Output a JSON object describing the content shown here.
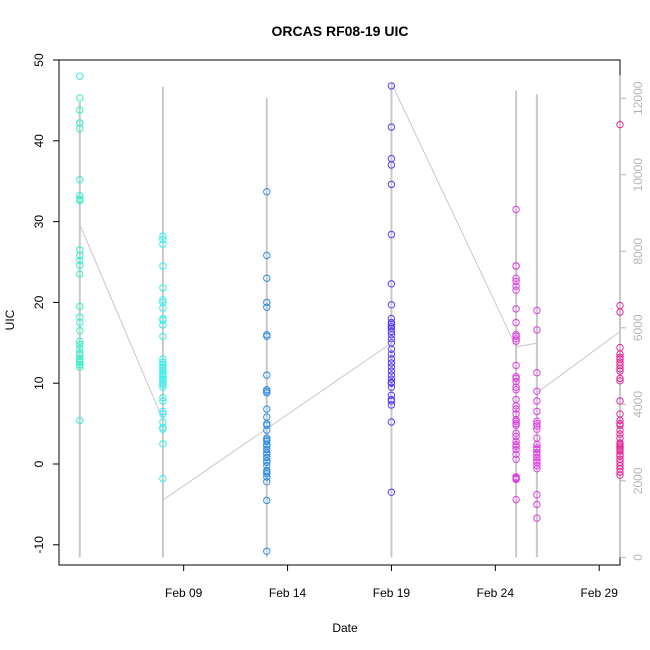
{
  "chart_data": {
    "type": "scatter",
    "title": "ORCAS RF08-19 UIC",
    "xlabel": "Date",
    "ylabel": "UIC",
    "x_axis": {
      "range": [
        "2016-02-03",
        "2016-03-01"
      ],
      "ticks": [
        "2016-02-09",
        "2016-02-14",
        "2016-02-19",
        "2016-02-24",
        "2016-02-29"
      ],
      "tick_labels": [
        "Feb 09",
        "Feb 14",
        "Feb 19",
        "Feb 24",
        "Feb 29"
      ]
    },
    "y_axis_left": {
      "range": [
        -12.5,
        50
      ],
      "ticks": [
        -10,
        0,
        10,
        20,
        30,
        40,
        50
      ],
      "tick_labels": [
        "-10",
        "0",
        "10",
        "20",
        "30",
        "40",
        "50"
      ]
    },
    "y_axis_right": {
      "range": [
        -200,
        13000
      ],
      "ticks": [
        0,
        2000,
        4000,
        6000,
        8000,
        10000,
        12000
      ],
      "tick_labels": [
        "0",
        "2000",
        "4000",
        "6000",
        "8000",
        "10000",
        "12000"
      ],
      "color": "#b4b4b4"
    },
    "grid": false,
    "legend": "none",
    "series": [
      {
        "color": "#33f0c8",
        "x": [
          "2016-02-04",
          "2016-02-04",
          "2016-02-04",
          "2016-02-04",
          "2016-02-04",
          "2016-02-04",
          "2016-02-04",
          "2016-02-04",
          "2016-02-04",
          "2016-02-04",
          "2016-02-04",
          "2016-02-04",
          "2016-02-04",
          "2016-02-04",
          "2016-02-04",
          "2016-02-04",
          "2016-02-04",
          "2016-02-04",
          "2016-02-04",
          "2016-02-04",
          "2016-02-04",
          "2016-02-04",
          "2016-02-04",
          "2016-02-04",
          "2016-02-04",
          "2016-02-04",
          "2016-02-04",
          "2016-02-04",
          "2016-02-04",
          "2016-02-04"
        ],
        "y": [
          48.0,
          45.3,
          43.8,
          42.2,
          42.2,
          41.5,
          35.2,
          33.2,
          32.8,
          32.6,
          26.5,
          25.8,
          25.2,
          24.6,
          23.5,
          19.5,
          18.2,
          17.5,
          16.5,
          15.2,
          14.8,
          14.3,
          13.8,
          13.5,
          13.0,
          12.8,
          12.6,
          12.3,
          12.0,
          5.4
        ]
      },
      {
        "color": "#33f0f0",
        "x": [
          "2016-02-08",
          "2016-02-08",
          "2016-02-08",
          "2016-02-08",
          "2016-02-08",
          "2016-02-08",
          "2016-02-08",
          "2016-02-08",
          "2016-02-08",
          "2016-02-08",
          "2016-02-08",
          "2016-02-08",
          "2016-02-08",
          "2016-02-08",
          "2016-02-08",
          "2016-02-08",
          "2016-02-08",
          "2016-02-08",
          "2016-02-08",
          "2016-02-08",
          "2016-02-08",
          "2016-02-08",
          "2016-02-08",
          "2016-02-08",
          "2016-02-08",
          "2016-02-08",
          "2016-02-08",
          "2016-02-08",
          "2016-02-08",
          "2016-02-08",
          "2016-02-08",
          "2016-02-08",
          "2016-02-08",
          "2016-02-08",
          "2016-02-08"
        ],
        "y": [
          28.2,
          27.8,
          27.2,
          24.5,
          21.8,
          20.3,
          20.0,
          19.3,
          18.0,
          17.8,
          17.2,
          15.8,
          13.0,
          12.6,
          12.3,
          12.0,
          11.8,
          11.5,
          11.2,
          11.0,
          10.8,
          10.5,
          10.3,
          10.0,
          9.8,
          9.5,
          8.2,
          7.8,
          6.5,
          6.2,
          5.2,
          4.5,
          4.3,
          2.5,
          -1.8
        ]
      },
      {
        "color": "#2e8ee8",
        "x": [
          "2016-02-13",
          "2016-02-13",
          "2016-02-13",
          "2016-02-13",
          "2016-02-13",
          "2016-02-13",
          "2016-02-13",
          "2016-02-13",
          "2016-02-13",
          "2016-02-13",
          "2016-02-13",
          "2016-02-13",
          "2016-02-13",
          "2016-02-13",
          "2016-02-13",
          "2016-02-13",
          "2016-02-13",
          "2016-02-13",
          "2016-02-13",
          "2016-02-13",
          "2016-02-13",
          "2016-02-13",
          "2016-02-13",
          "2016-02-13",
          "2016-02-13",
          "2016-02-13",
          "2016-02-13",
          "2016-02-13",
          "2016-02-13",
          "2016-02-13",
          "2016-02-13",
          "2016-02-13",
          "2016-02-13",
          "2016-02-13",
          "2016-02-13"
        ],
        "y": [
          33.7,
          25.8,
          23.0,
          20.0,
          19.4,
          16.0,
          15.8,
          11.0,
          9.2,
          9.0,
          8.8,
          6.8,
          5.8,
          5.0,
          4.8,
          4.2,
          3.2,
          3.0,
          2.8,
          2.4,
          2.2,
          1.8,
          1.4,
          1.2,
          0.8,
          0.4,
          0.2,
          -0.2,
          -0.8,
          -1.0,
          -1.2,
          -1.6,
          -2.2,
          -4.5,
          -10.8
        ]
      },
      {
        "color": "#5a3ef0",
        "x": [
          "2016-02-19",
          "2016-02-19",
          "2016-02-19",
          "2016-02-19",
          "2016-02-19",
          "2016-02-19",
          "2016-02-19",
          "2016-02-19",
          "2016-02-19",
          "2016-02-19",
          "2016-02-19",
          "2016-02-19",
          "2016-02-19",
          "2016-02-19",
          "2016-02-19",
          "2016-02-19",
          "2016-02-19",
          "2016-02-19",
          "2016-02-19",
          "2016-02-19",
          "2016-02-19",
          "2016-02-19",
          "2016-02-19",
          "2016-02-19",
          "2016-02-19",
          "2016-02-19",
          "2016-02-19",
          "2016-02-19",
          "2016-02-19",
          "2016-02-19",
          "2016-02-19",
          "2016-02-19",
          "2016-02-19",
          "2016-02-19"
        ],
        "y": [
          46.8,
          41.7,
          37.8,
          37.0,
          34.6,
          28.4,
          22.3,
          19.7,
          18.0,
          17.5,
          17.3,
          17.0,
          16.8,
          16.4,
          16.0,
          15.5,
          15.0,
          14.2,
          13.6,
          13.0,
          12.5,
          12.0,
          11.5,
          11.0,
          10.5,
          10.1,
          10.0,
          9.5,
          8.5,
          8.0,
          7.8,
          7.3,
          5.2,
          -3.5
        ]
      },
      {
        "color": "#e03ee6",
        "x": [
          "2016-02-25",
          "2016-02-25",
          "2016-02-25",
          "2016-02-25",
          "2016-02-25",
          "2016-02-25",
          "2016-02-25",
          "2016-02-25",
          "2016-02-25",
          "2016-02-25",
          "2016-02-25",
          "2016-02-25",
          "2016-02-25",
          "2016-02-25",
          "2016-02-25",
          "2016-02-25",
          "2016-02-25",
          "2016-02-25",
          "2016-02-25",
          "2016-02-25",
          "2016-02-25",
          "2016-02-25",
          "2016-02-25",
          "2016-02-25",
          "2016-02-25",
          "2016-02-25",
          "2016-02-25",
          "2016-02-25",
          "2016-02-25",
          "2016-02-25",
          "2016-02-25",
          "2016-02-25",
          "2016-02-25",
          "2016-02-25",
          "2016-02-25",
          "2016-02-25",
          "2016-02-25",
          "2016-02-25",
          "2016-02-25",
          "2016-02-25",
          "2016-02-26",
          "2016-02-26",
          "2016-02-26",
          "2016-02-26",
          "2016-02-26",
          "2016-02-26",
          "2016-02-26",
          "2016-02-26",
          "2016-02-26",
          "2016-02-26",
          "2016-02-26",
          "2016-02-26",
          "2016-02-26",
          "2016-02-26",
          "2016-02-26",
          "2016-02-26",
          "2016-02-26",
          "2016-02-26",
          "2016-02-26",
          "2016-02-26",
          "2016-02-26",
          "2016-02-26",
          "2016-02-26",
          "2016-02-26"
        ],
        "y": [
          31.5,
          24.5,
          24.5,
          23.0,
          22.6,
          22.0,
          21.5,
          19.2,
          17.5,
          16.0,
          15.8,
          15.5,
          15.2,
          12.2,
          10.8,
          10.6,
          10.2,
          9.5,
          9.2,
          8.0,
          7.2,
          6.8,
          6.2,
          5.5,
          5.3,
          5.0,
          4.8,
          3.8,
          3.4,
          2.8,
          2.4,
          2.2,
          1.8,
          1.2,
          0.6,
          -1.6,
          -1.7,
          -1.8,
          -1.9,
          -4.4,
          19.0,
          16.6,
          11.3,
          9.0,
          7.8,
          6.5,
          5.3,
          5.0,
          4.7,
          4.3,
          3.2,
          2.4,
          2.0,
          1.8,
          1.4,
          1.2,
          0.8,
          0.4,
          0.2,
          -0.2,
          -0.6,
          -3.8,
          -5.0,
          -6.7
        ]
      },
      {
        "color": "#e6289c",
        "x": [
          "2016-03-01",
          "2016-03-01",
          "2016-03-01",
          "2016-03-01",
          "2016-03-01",
          "2016-03-01",
          "2016-03-01",
          "2016-03-01",
          "2016-03-01",
          "2016-03-01",
          "2016-03-01",
          "2016-03-01",
          "2016-03-01",
          "2016-03-01",
          "2016-03-01",
          "2016-03-01",
          "2016-03-01",
          "2016-03-01",
          "2016-03-01",
          "2016-03-01",
          "2016-03-01",
          "2016-03-01",
          "2016-03-01",
          "2016-03-01",
          "2016-03-01",
          "2016-03-01",
          "2016-03-01",
          "2016-03-01",
          "2016-03-01",
          "2016-03-01",
          "2016-03-01",
          "2016-03-01",
          "2016-03-01",
          "2016-03-01",
          "2016-03-01"
        ],
        "y": [
          42.0,
          19.6,
          18.8,
          14.4,
          13.6,
          13.2,
          13.0,
          12.6,
          12.2,
          11.8,
          11.5,
          10.6,
          10.3,
          7.8,
          6.2,
          5.4,
          5.0,
          4.8,
          4.2,
          3.7,
          3.2,
          2.6,
          2.4,
          2.2,
          2.0,
          1.8,
          1.6,
          1.2,
          1.0,
          0.6,
          0.2,
          -0.2,
          -0.6,
          -1.0,
          -1.4
        ]
      }
    ],
    "background_series": {
      "color": "#c8c8c8",
      "axis": "right",
      "trend_x": [
        "2016-02-04",
        "2016-02-08",
        "2016-02-08",
        "2016-02-19",
        "2016-02-19",
        "2016-02-25",
        "2016-02-26",
        "2016-02-26",
        "2016-03-01"
      ],
      "trend_y": [
        8700,
        3600,
        1500,
        5600,
        12400,
        5500,
        5600,
        4300,
        5900
      ],
      "spikes": [
        {
          "x": "2016-02-04",
          "y_min": 0,
          "y_max": 11900
        },
        {
          "x": "2016-02-08",
          "y_min": 0,
          "y_max": 12300
        },
        {
          "x": "2016-02-13",
          "y_min": 0,
          "y_max": 12000
        },
        {
          "x": "2016-02-19",
          "y_min": 0,
          "y_max": 12300
        },
        {
          "x": "2016-02-25",
          "y_min": 0,
          "y_max": 12200
        },
        {
          "x": "2016-02-26",
          "y_min": 0,
          "y_max": 12100
        },
        {
          "x": "2016-03-01",
          "y_min": 0,
          "y_max": 12600
        }
      ]
    }
  }
}
